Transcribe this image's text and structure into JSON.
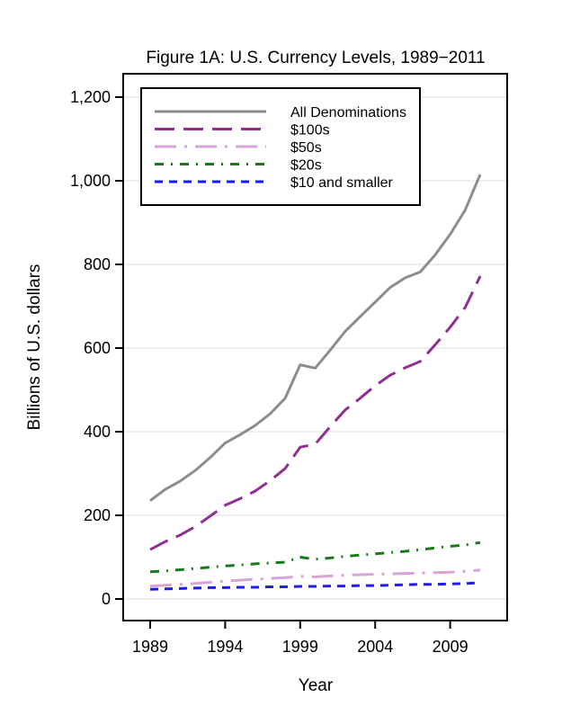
{
  "chart_data": {
    "type": "line",
    "title": "Figure 1A: U.S. Currency Levels, 1989−2011",
    "xlabel": "Year",
    "ylabel": "Billions of U.S. dollars",
    "xlim": [
      1989,
      2011
    ],
    "ylim": [
      0,
      1200
    ],
    "xticks": [
      1989,
      1994,
      1999,
      2004,
      2009
    ],
    "yticks": [
      0,
      200,
      400,
      600,
      800,
      1000,
      1200
    ],
    "ytick_labels": [
      "0",
      "200",
      "400",
      "600",
      "800",
      "1,000",
      "1,200"
    ],
    "grid": "horizontal",
    "legend_position": "top-left",
    "x": [
      1989,
      1990,
      1991,
      1992,
      1993,
      1994,
      1995,
      1996,
      1997,
      1998,
      1999,
      2000,
      2001,
      2002,
      2003,
      2004,
      2005,
      2006,
      2007,
      2008,
      2009,
      2010,
      2011
    ],
    "series": [
      {
        "name": "All Denominations",
        "color": "#8c8c8c",
        "dash": "solid",
        "values": [
          235,
          262,
          282,
          307,
          338,
          373,
          393,
          415,
          443,
          480,
          560,
          552,
          595,
          640,
          675,
          710,
          745,
          768,
          782,
          823,
          872,
          930,
          1015
        ]
      },
      {
        "name": "$100s",
        "color": "#8f2f91",
        "dash": "long-dash",
        "values": [
          118,
          137,
          153,
          173,
          198,
          224,
          240,
          258,
          283,
          312,
          363,
          370,
          412,
          452,
          480,
          510,
          535,
          553,
          568,
          608,
          650,
          697,
          772
        ]
      },
      {
        "name": "$50s",
        "color": "#d9a3d9",
        "dash": "long-dash-dot",
        "values": [
          31,
          33,
          35,
          37,
          40,
          43,
          45,
          47,
          49,
          51,
          54,
          53,
          55,
          57,
          58,
          59,
          60,
          61,
          62,
          63,
          64,
          66,
          69
        ]
      },
      {
        "name": "$20s",
        "color": "#1a7a1a",
        "dash": "dash-dot",
        "values": [
          65,
          67,
          70,
          73,
          76,
          79,
          81,
          84,
          86,
          88,
          100,
          95,
          98,
          102,
          105,
          108,
          111,
          114,
          118,
          122,
          126,
          129,
          135
        ]
      },
      {
        "name": "$10 and smaller",
        "color": "#1a1aff",
        "dash": "dash",
        "values": [
          23,
          24,
          25,
          26,
          27,
          27,
          28,
          28,
          29,
          29,
          30,
          30,
          31,
          31,
          32,
          32,
          33,
          34,
          35,
          35,
          36,
          37,
          39
        ]
      }
    ]
  }
}
